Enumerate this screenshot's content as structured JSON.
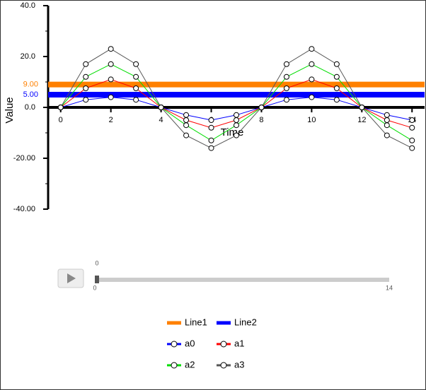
{
  "chart_data": {
    "type": "line",
    "x_label": "Time",
    "y_label": "Value",
    "x": [
      0,
      1,
      2,
      3,
      4,
      5,
      6,
      7,
      8,
      9,
      10,
      11,
      12,
      13,
      14
    ],
    "series": [
      {
        "name": "a0",
        "color": "#0000ff",
        "values": [
          0,
          3,
          4,
          3,
          0,
          -3,
          -5,
          -3,
          0,
          3,
          4,
          3,
          0,
          -3,
          -5
        ]
      },
      {
        "name": "a1",
        "color": "#ff0000",
        "values": [
          0,
          7.5,
          11,
          7.5,
          0,
          -5,
          -8,
          -5,
          0,
          7.5,
          11,
          7.5,
          0,
          -5,
          -8
        ]
      },
      {
        "name": "a2",
        "color": "#00dd00",
        "values": [
          0,
          12,
          17,
          12,
          0,
          -7,
          -13,
          -7,
          0,
          12,
          17,
          12,
          0,
          -7,
          -13
        ]
      },
      {
        "name": "a3",
        "color": "#555555",
        "values": [
          0,
          17,
          23,
          17,
          0,
          -11,
          -16,
          -11,
          0,
          17,
          23,
          17,
          0,
          -11,
          -16
        ]
      }
    ],
    "hlines": [
      {
        "name": "Line1",
        "color": "#ff8000",
        "value": 9,
        "value_label": "9.00"
      },
      {
        "name": "Line2",
        "color": "#0000ff",
        "value": 5,
        "value_label": "5.00"
      }
    ],
    "xlim": [
      -0.5,
      14.5
    ],
    "ylim": [
      -40,
      40
    ],
    "xticks": [
      0,
      2,
      4,
      6,
      8,
      10,
      12,
      14
    ],
    "yticks": [
      {
        "value": -40,
        "label": "-40.00"
      },
      {
        "value": -20,
        "label": "-20.00"
      },
      {
        "value": 0,
        "label": "0.0"
      },
      {
        "value": 20,
        "label": "20.0"
      },
      {
        "value": 40,
        "label": "40.0"
      }
    ],
    "yminorticks": [
      -30,
      -10,
      10,
      30
    ]
  },
  "player": {
    "value": 0,
    "min": 0,
    "max": 14
  }
}
